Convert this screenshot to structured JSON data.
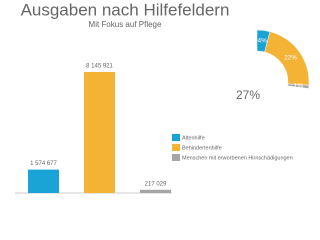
{
  "chart_data": [
    {
      "type": "bar",
      "title": "Ausgaben nach Hilfefeldern",
      "subtitle": "Mit Fokus auf Pflege",
      "categories": [
        "Altenhilfe",
        "Behindertenhilfe",
        "Menschen mit erworbenen Hirnschädigungen"
      ],
      "values": [
        1574677,
        8145921,
        217029
      ],
      "value_labels": [
        "1 574 677",
        "8 145 921",
        "217 029"
      ],
      "colors": [
        "#1aa3d6",
        "#f5b335",
        "#a6a6a6"
      ]
    },
    {
      "type": "pie",
      "values": [
        4,
        22,
        1
      ],
      "value_labels": [
        "4%",
        "22%",
        "1%"
      ],
      "colors": [
        "#1aa3d6",
        "#f5b335",
        "#a6a6a6"
      ],
      "center_label": "27%"
    }
  ]
}
